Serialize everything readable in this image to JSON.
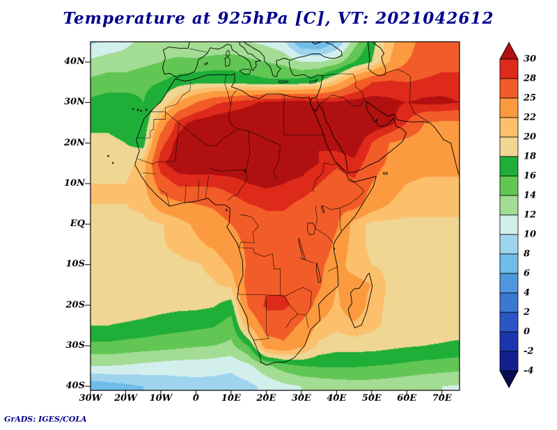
{
  "title": {
    "text": "Temperature at 925hPa [C], VT: 2021042612"
  },
  "credit": "GrADS: IGES/COLA",
  "axes": {
    "lat_ticks": [
      {
        "label": "40N",
        "value": 40
      },
      {
        "label": "30N",
        "value": 30
      },
      {
        "label": "20N",
        "value": 20
      },
      {
        "label": "10N",
        "value": 10
      },
      {
        "label": "EQ",
        "value": 0
      },
      {
        "label": "10S",
        "value": -10
      },
      {
        "label": "20S",
        "value": -20
      },
      {
        "label": "30S",
        "value": -30
      },
      {
        "label": "40S",
        "value": -40
      }
    ],
    "lon_ticks": [
      {
        "label": "30W",
        "value": -30
      },
      {
        "label": "20W",
        "value": -20
      },
      {
        "label": "10W",
        "value": -10
      },
      {
        "label": "0",
        "value": 0
      },
      {
        "label": "10E",
        "value": 10
      },
      {
        "label": "20E",
        "value": 20
      },
      {
        "label": "30E",
        "value": 30
      },
      {
        "label": "40E",
        "value": 40
      },
      {
        "label": "50E",
        "value": 50
      },
      {
        "label": "60E",
        "value": 60
      },
      {
        "label": "70E",
        "value": 70
      }
    ]
  },
  "colorbar": {
    "labels": [
      "30",
      "28",
      "25",
      "22",
      "20",
      "18",
      "16",
      "14",
      "12",
      "10",
      "8",
      "6",
      "4",
      "2",
      "0",
      "-2",
      "-4"
    ],
    "levels": [
      -4,
      -2,
      0,
      2,
      4,
      6,
      8,
      10,
      12,
      14,
      16,
      18,
      20,
      22,
      25,
      28,
      30
    ],
    "colors": [
      "#070d52",
      "#12208e",
      "#1c35ae",
      "#2b55c4",
      "#3a78d2",
      "#4f97dd",
      "#6fbce8",
      "#9fd4ef",
      "#d3efec",
      "#a3dc93",
      "#62c654",
      "#1fae38",
      "#efd693",
      "#fcbf6b",
      "#fb9a3f",
      "#f25c28",
      "#dd2a1a",
      "#b11010"
    ]
  },
  "chart_data": {
    "type": "heatmap",
    "title": "Temperature at 925hPa [C], VT: 2021042612",
    "variable": "Temperature",
    "units": "C",
    "level_hPa": 925,
    "valid_time": "2021042612",
    "extent": {
      "lon_min": -30,
      "lon_max": 75,
      "lat_min": -41,
      "lat_max": 45
    },
    "lon": [
      -30,
      -25,
      -20,
      -15,
      -10,
      -5,
      0,
      5,
      10,
      15,
      20,
      25,
      30,
      35,
      40,
      45,
      50,
      55,
      60,
      65,
      70,
      75
    ],
    "lat": [
      45,
      40,
      35,
      30,
      25,
      20,
      15,
      10,
      5,
      0,
      -5,
      -10,
      -15,
      -20,
      -25,
      -30,
      -35,
      -40
    ],
    "values": [
      [
        9.5,
        10.5,
        11.5,
        12.5,
        13,
        12.5,
        12,
        12,
        12.5,
        12,
        11.5,
        10.5,
        6,
        5.5,
        8,
        13,
        17,
        21,
        24,
        26,
        27,
        27
      ],
      [
        12.5,
        13,
        13,
        13.5,
        14,
        14.5,
        14.5,
        15,
        15,
        14.5,
        14,
        13.5,
        12,
        12,
        13,
        16,
        18,
        22,
        25,
        26,
        27,
        27
      ],
      [
        14.5,
        15,
        15,
        15.5,
        16,
        17,
        17.5,
        17.5,
        17.5,
        17,
        16.5,
        16.5,
        17,
        18,
        21,
        25,
        28,
        28.5,
        28,
        28.5,
        29,
        29
      ],
      [
        16.5,
        17,
        17,
        16,
        18,
        22,
        25,
        27.5,
        28.5,
        29.5,
        30.5,
        31,
        31,
        30.5,
        30.5,
        31,
        31,
        30.5,
        30,
        30.5,
        30.5,
        30
      ],
      [
        17.5,
        17.5,
        17,
        16,
        23,
        29,
        31,
        31.5,
        32,
        32,
        32,
        32,
        31.5,
        30,
        31.5,
        32,
        32,
        31,
        28,
        25,
        24.5,
        24.5
      ],
      [
        18.5,
        18.5,
        18,
        17,
        27,
        31,
        32,
        32,
        32,
        32,
        32,
        31.5,
        31,
        30,
        31,
        31.5,
        28,
        25,
        24,
        23.5,
        23.5,
        23.5
      ],
      [
        19.5,
        19.5,
        19,
        21,
        29.5,
        31.5,
        32,
        32,
        32,
        32,
        31.5,
        31,
        31,
        30,
        28.5,
        29.5,
        26.5,
        24.5,
        23.5,
        23,
        23,
        23
      ],
      [
        20,
        20,
        20,
        21.5,
        26.5,
        28.5,
        28.5,
        28.5,
        29,
        30,
        30.5,
        30,
        29.5,
        28,
        26.5,
        27.5,
        25,
        23,
        22,
        21.5,
        21.5,
        21.5
      ],
      [
        20,
        20,
        20,
        20.5,
        23.5,
        24.5,
        25,
        25.5,
        27,
        28,
        28.5,
        28.5,
        27.5,
        26.5,
        26,
        26.5,
        23.5,
        22,
        21,
        21,
        21,
        21
      ],
      [
        19.5,
        19.5,
        19.5,
        19.5,
        19.8,
        21,
        22.5,
        23.5,
        25,
        26,
        27,
        27,
        26.5,
        27.5,
        25.5,
        21,
        19.5,
        19.5,
        19.5,
        19.5,
        19.5,
        19.5
      ],
      [
        19.5,
        19.5,
        19.5,
        19.5,
        19.8,
        20.5,
        21.5,
        22.5,
        24,
        25.5,
        26,
        26.5,
        27,
        28,
        24,
        21,
        19.5,
        19.5,
        19.5,
        19.5,
        19.5,
        19.5
      ],
      [
        19.5,
        19.5,
        19.5,
        19.5,
        19.5,
        19.5,
        19.8,
        20.5,
        22.5,
        25.5,
        26,
        26,
        26,
        26,
        23,
        21,
        20,
        19.5,
        19.5,
        19.5,
        19.5,
        19.5
      ],
      [
        19.5,
        19.5,
        19.5,
        19.5,
        19.5,
        19.5,
        19.5,
        19.8,
        20.5,
        26.5,
        27.5,
        27.5,
        27,
        25.5,
        22,
        23,
        22,
        19.5,
        19.5,
        19.5,
        19.5,
        19.5
      ],
      [
        19,
        19,
        19,
        19,
        18.8,
        18.5,
        18.5,
        18.2,
        17,
        25.5,
        28.5,
        28.5,
        27,
        24,
        21.5,
        24,
        21,
        19.5,
        19.5,
        19.5,
        19.5,
        19.5
      ],
      [
        18,
        18,
        17.8,
        17.5,
        17,
        16.8,
        16.5,
        16.2,
        15,
        22,
        26.5,
        26.5,
        24.5,
        21.5,
        20.5,
        21.5,
        20.5,
        19.5,
        19.5,
        19.2,
        19.2,
        19.2
      ],
      [
        15.5,
        15.5,
        15.2,
        15,
        14.8,
        14.5,
        14.2,
        14,
        13.5,
        16,
        23.5,
        24.5,
        22.5,
        19.5,
        18.8,
        18.8,
        18.8,
        18.5,
        18.2,
        18,
        17.8,
        17.5
      ],
      [
        12,
        12,
        11.8,
        11.5,
        11.2,
        11,
        11,
        10.8,
        10.5,
        11.5,
        13.5,
        15,
        16,
        16.2,
        16.2,
        16.2,
        16,
        15.8,
        15.5,
        15.2,
        15,
        14.8
      ],
      [
        6.5,
        7,
        7.5,
        8,
        8.5,
        9,
        9.2,
        9.2,
        9,
        9.5,
        10.5,
        11.5,
        12,
        12.5,
        12.8,
        13,
        13,
        12.8,
        12.5,
        12.2,
        12,
        11.8
      ]
    ]
  }
}
